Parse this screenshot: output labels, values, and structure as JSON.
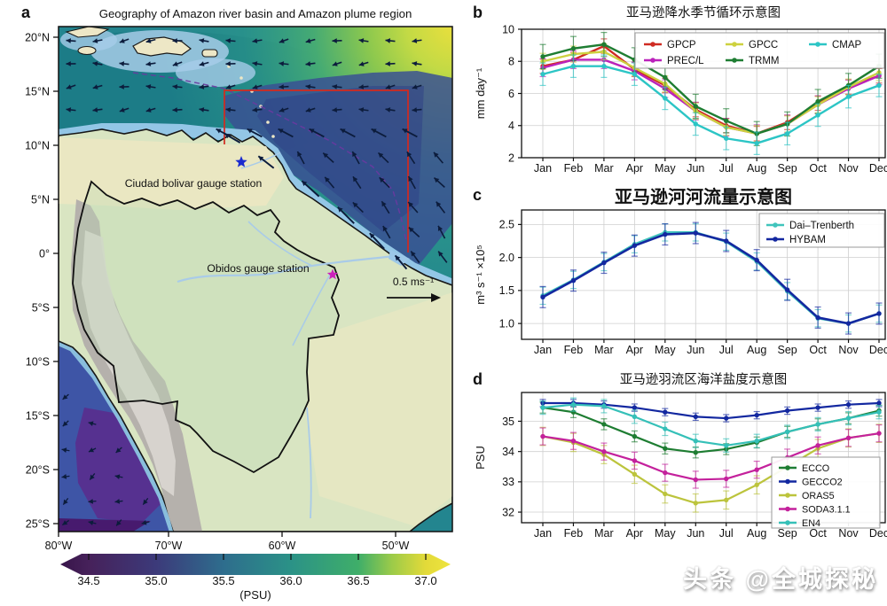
{
  "watermark": "头条 @全城探秘",
  "panel_a": {
    "letter": "a",
    "title": "Geography of Amazon river basin and Amazon plume region",
    "lat_ticks": [
      "20°N",
      "15°N",
      "10°N",
      "5°N",
      "0°",
      "5°S",
      "10°S",
      "15°S",
      "20°S",
      "25°S"
    ],
    "lon_ticks": [
      "80°W",
      "70°W",
      "60°W",
      "50°W"
    ],
    "station_blue": {
      "label": "Ciudad bolivar gauge station",
      "color": "#2a35cc"
    },
    "station_magenta": {
      "label": "Obidos gauge station",
      "color": "#cc22bb"
    },
    "scale_label": "0.5 ms⁻¹",
    "colorbar": {
      "tick_labels": [
        "34.5",
        "35.0",
        "35.5",
        "36.0",
        "36.5",
        "37.0"
      ],
      "label": "(PSU)"
    }
  },
  "chart_data": [
    {
      "panel_letter": "b",
      "type": "line",
      "title": "亚马逊降水季节循环示意图",
      "ylabel": "mm day⁻¹",
      "ylim": [
        2,
        10
      ],
      "yticks": [
        2,
        4,
        6,
        8,
        10
      ],
      "ytick_labels": [
        "2",
        "4",
        "6",
        "8",
        "10"
      ],
      "categories": [
        "Jan",
        "Feb",
        "Mar",
        "Apr",
        "May",
        "Jun",
        "Jul",
        "Aug",
        "Sep",
        "Oct",
        "Nov",
        "Dec"
      ],
      "legend_position": "top-center",
      "series": [
        {
          "name": "GPCP",
          "color": "#cf2b22",
          "err": 0.45,
          "values": [
            7.7,
            8.1,
            8.95,
            7.5,
            6.5,
            5.0,
            4.0,
            3.5,
            4.2,
            5.4,
            6.4,
            7.1
          ]
        },
        {
          "name": "PREC/L",
          "color": "#bb22bb",
          "err": 0.55,
          "values": [
            7.6,
            8.1,
            8.1,
            7.4,
            6.3,
            4.9,
            3.9,
            3.5,
            4.1,
            5.3,
            6.3,
            7.1
          ]
        },
        {
          "name": "GPCC",
          "color": "#cdd13f",
          "err": 0.5,
          "values": [
            8.0,
            8.45,
            8.6,
            7.6,
            6.6,
            4.9,
            3.9,
            3.5,
            4.1,
            5.3,
            6.4,
            7.3
          ]
        },
        {
          "name": "TRMM",
          "color": "#1e7d32",
          "err": 0.75,
          "values": [
            8.3,
            8.8,
            9.05,
            8.1,
            7.0,
            5.2,
            4.3,
            3.5,
            4.1,
            5.5,
            6.5,
            7.7
          ]
        },
        {
          "name": "CMAP",
          "color": "#2cc5c5",
          "err": 0.7,
          "values": [
            7.2,
            7.7,
            7.7,
            7.2,
            5.7,
            4.1,
            3.2,
            2.9,
            3.5,
            4.65,
            5.8,
            6.5
          ]
        }
      ]
    },
    {
      "panel_letter": "c",
      "type": "line",
      "title": "亚马逊河河流量示意图",
      "ylabel": "m³ s⁻¹ ×10⁵",
      "ylim": [
        0.76,
        2.72
      ],
      "yticks": [
        1.0,
        1.5,
        2.0,
        2.5
      ],
      "ytick_labels": [
        "1.0",
        "1.5",
        "2.0",
        "2.5"
      ],
      "categories": [
        "Jan",
        "Feb",
        "Mar",
        "Apr",
        "May",
        "Jun",
        "Jul",
        "Aug",
        "Sep",
        "Oct",
        "Nov",
        "Dec"
      ],
      "legend_position": "top-right",
      "series": [
        {
          "name": "Dai–Trenberth",
          "color": "#40c4bc",
          "err": 0.13,
          "values": [
            1.42,
            1.66,
            1.93,
            2.2,
            2.38,
            2.38,
            2.24,
            1.94,
            1.49,
            1.08,
            1.0,
            1.15
          ]
        },
        {
          "name": "HYBAM",
          "color": "#1428a0",
          "err": 0.16,
          "values": [
            1.4,
            1.65,
            1.92,
            2.18,
            2.35,
            2.37,
            2.25,
            1.96,
            1.51,
            1.09,
            1.0,
            1.15
          ]
        }
      ]
    },
    {
      "panel_letter": "d",
      "type": "line",
      "title": "亚马逊羽流区海洋盐度示意图",
      "ylabel": "PSU",
      "ylim": [
        31.65,
        35.95
      ],
      "yticks": [
        32,
        33,
        34,
        35
      ],
      "ytick_labels": [
        "32",
        "33",
        "34",
        "35"
      ],
      "categories": [
        "Jan",
        "Feb",
        "Mar",
        "Apr",
        "May",
        "Jun",
        "Jul",
        "Aug",
        "Sep",
        "Oct",
        "Nov",
        "Dec"
      ],
      "legend_position": "bottom-right",
      "series": [
        {
          "name": "ECCO",
          "color": "#1e7d32",
          "err": 0.18,
          "values": [
            35.45,
            35.3,
            34.9,
            34.5,
            34.1,
            33.97,
            34.08,
            34.3,
            34.65,
            34.9,
            35.1,
            35.35
          ]
        },
        {
          "name": "GECCO2",
          "color": "#1328a0",
          "err": 0.12,
          "values": [
            35.6,
            35.6,
            35.55,
            35.45,
            35.3,
            35.15,
            35.1,
            35.2,
            35.35,
            35.45,
            35.55,
            35.6
          ]
        },
        {
          "name": "ORAS5",
          "color": "#bcc43c",
          "err": 0.3,
          "values": [
            34.5,
            34.3,
            33.9,
            33.25,
            32.6,
            32.3,
            32.4,
            32.9,
            33.5,
            34.1,
            34.45,
            34.6
          ]
        },
        {
          "name": "SODA3.1.1",
          "color": "#c4219c",
          "err": 0.28,
          "values": [
            34.5,
            34.35,
            34.0,
            33.7,
            33.3,
            33.07,
            33.1,
            33.4,
            33.8,
            34.2,
            34.45,
            34.6
          ]
        },
        {
          "name": "EN4",
          "color": "#35c0b8",
          "err": 0.22,
          "values": [
            35.45,
            35.55,
            35.5,
            35.15,
            34.75,
            34.35,
            34.2,
            34.35,
            34.65,
            34.9,
            35.1,
            35.3
          ]
        }
      ]
    }
  ]
}
